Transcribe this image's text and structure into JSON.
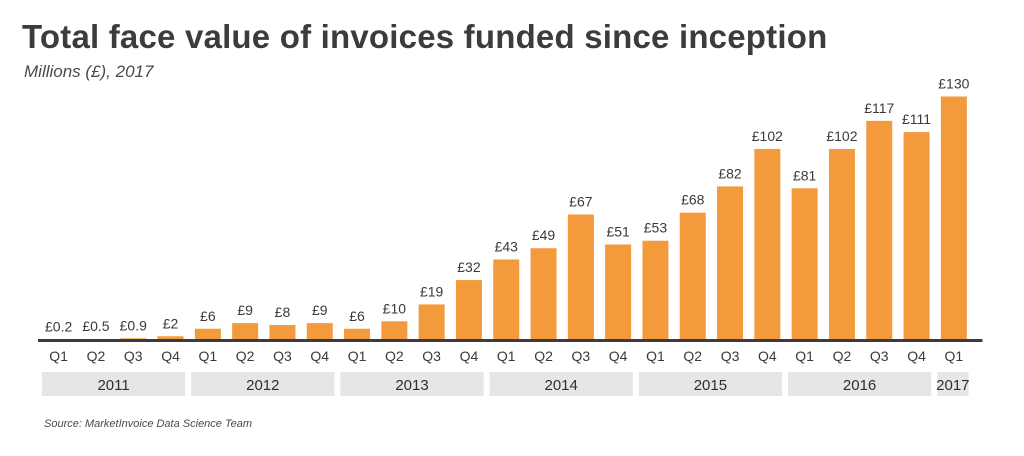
{
  "title": "Total face value of invoices funded since inception",
  "subtitle": "Millions (£), 2017",
  "source": "Source: MarketInvoice Data Science Team",
  "colors": {
    "bar": "#f39a3d",
    "baseline": "#3c3c3c",
    "year_band": "#e6e6e6"
  },
  "chart_data": {
    "type": "bar",
    "x_axis": "quarter",
    "ylim": [
      0,
      140
    ],
    "grid": false,
    "legend": "none",
    "categories": [
      "Q1",
      "Q2",
      "Q3",
      "Q4",
      "Q1",
      "Q2",
      "Q3",
      "Q4",
      "Q1",
      "Q2",
      "Q3",
      "Q4",
      "Q1",
      "Q2",
      "Q3",
      "Q4",
      "Q1",
      "Q2",
      "Q3",
      "Q4",
      "Q1",
      "Q2",
      "Q3",
      "Q4",
      "Q1"
    ],
    "years": [
      "2011",
      "2011",
      "2011",
      "2011",
      "2012",
      "2012",
      "2012",
      "2012",
      "2013",
      "2013",
      "2013",
      "2013",
      "2014",
      "2014",
      "2014",
      "2014",
      "2015",
      "2015",
      "2015",
      "2015",
      "2016",
      "2016",
      "2016",
      "2016",
      "2017"
    ],
    "values": [
      0.2,
      0.5,
      0.9,
      2,
      6,
      9,
      8,
      9,
      6,
      10,
      19,
      32,
      43,
      49,
      67,
      51,
      53,
      68,
      82,
      102,
      81,
      102,
      117,
      111,
      130
    ],
    "labels": [
      "£0.2",
      "£0.5",
      "£0.9",
      "£2",
      "£6",
      "£9",
      "£8",
      "£9",
      "£6",
      "£10",
      "£19",
      "£32",
      "£43",
      "£49",
      "£67",
      "£51",
      "£53",
      "£68",
      "£82",
      "£102",
      "£81",
      "£102",
      "£117",
      "£111",
      "£130"
    ],
    "year_groups": [
      {
        "label": "2011",
        "count": 4
      },
      {
        "label": "2012",
        "count": 4
      },
      {
        "label": "2013",
        "count": 4
      },
      {
        "label": "2014",
        "count": 4
      },
      {
        "label": "2015",
        "count": 4
      },
      {
        "label": "2016",
        "count": 4
      },
      {
        "label": "2017",
        "count": 1
      }
    ]
  }
}
